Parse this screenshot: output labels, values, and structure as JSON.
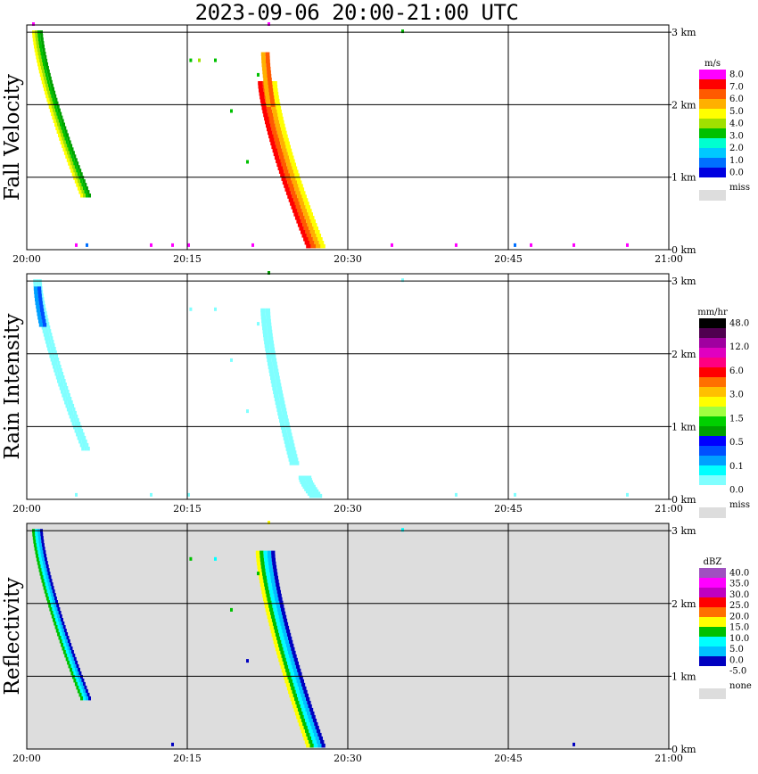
{
  "title": "2023-09-06   20:00-21:00 UTC",
  "chart_data": [
    {
      "type": "heatmap",
      "ylabel": "Fall Velocity",
      "x_ticks": [
        "20:00",
        "20:15",
        "20:30",
        "20:45",
        "21:00"
      ],
      "y_ticks": [
        "0 km",
        "1 km",
        "2 km",
        "3 km"
      ],
      "xlim": [
        "20:00",
        "21:00"
      ],
      "ylim_km": [
        0,
        3.1
      ],
      "grid": true,
      "background": "#ffffff",
      "colorbar": {
        "unit": "m/s",
        "labels": [
          "8.0",
          "7.0",
          "6.0",
          "5.0",
          "4.0",
          "3.0",
          "2.0",
          "1.0",
          "0.0"
        ],
        "colors": [
          "#ff00ff",
          "#ff0000",
          "#ff5a00",
          "#ffb000",
          "#ffff00",
          "#a0e000",
          "#00c000",
          "#00ffd0",
          "#00c8ff",
          "#0070ff",
          "#0000e0"
        ],
        "miss_label": "miss",
        "miss_color": "#dddddd"
      },
      "streaks": [
        {
          "start": [
            "20:01",
            3.0
          ],
          "end": [
            "20:05.5",
            0.75
          ],
          "width_min": 1.0,
          "colors": [
            "#ffff00",
            "#a0e000",
            "#00c000",
            "#00a000"
          ]
        },
        {
          "start": [
            "20:22.5",
            2.3
          ],
          "end": [
            "20:27",
            0.05
          ],
          "width_min": 1.8,
          "colors": [
            "#ff0000",
            "#ff5a00",
            "#ffb000",
            "#ffff00"
          ]
        },
        {
          "start": [
            "20:22.3",
            2.7
          ],
          "end": [
            "20:22.8",
            2.0
          ],
          "width_min": 0.8,
          "colors": [
            "#ffb000",
            "#ff5a00"
          ]
        }
      ],
      "specks": [
        {
          "t": "20:00.5",
          "h": 3.1,
          "c": "#ff00ff"
        },
        {
          "t": "20:15.2",
          "h": 2.6,
          "c": "#00c000"
        },
        {
          "t": "20:16",
          "h": 2.6,
          "c": "#a0e000"
        },
        {
          "t": "20:17.5",
          "h": 2.6,
          "c": "#00c000"
        },
        {
          "t": "20:21.5",
          "h": 2.4,
          "c": "#00c000"
        },
        {
          "t": "20:22.5",
          "h": 3.1,
          "c": "#ff00ff"
        },
        {
          "t": "20:19",
          "h": 1.9,
          "c": "#00c000"
        },
        {
          "t": "20:20.5",
          "h": 1.2,
          "c": "#00c000"
        },
        {
          "t": "20:35",
          "h": 3.0,
          "c": "#00c000"
        },
        {
          "t": "20:04.5",
          "h": 0.05,
          "c": "#ff00ff"
        },
        {
          "t": "20:05.5",
          "h": 0.05,
          "c": "#0070ff"
        },
        {
          "t": "20:11.5",
          "h": 0.05,
          "c": "#ff00ff"
        },
        {
          "t": "20:13.5",
          "h": 0.05,
          "c": "#ff00ff"
        },
        {
          "t": "20:15",
          "h": 0.05,
          "c": "#ff00ff"
        },
        {
          "t": "20:21",
          "h": 0.05,
          "c": "#ff00ff"
        },
        {
          "t": "20:34",
          "h": 0.05,
          "c": "#ff00ff"
        },
        {
          "t": "20:40",
          "h": 0.05,
          "c": "#ff00ff"
        },
        {
          "t": "20:45.5",
          "h": 0.05,
          "c": "#0070ff"
        },
        {
          "t": "20:47",
          "h": 0.05,
          "c": "#ff00ff"
        },
        {
          "t": "20:51",
          "h": 0.05,
          "c": "#ff00ff"
        },
        {
          "t": "20:56",
          "h": 0.05,
          "c": "#ff00ff"
        }
      ]
    },
    {
      "type": "heatmap",
      "ylabel": "Rain Intensity",
      "x_ticks": [
        "20:00",
        "20:15",
        "20:30",
        "20:45",
        "21:00"
      ],
      "y_ticks": [
        "0 km",
        "1 km",
        "2 km",
        "3 km"
      ],
      "xlim": [
        "20:00",
        "21:00"
      ],
      "ylim_km": [
        0,
        3.1
      ],
      "grid": true,
      "background": "#ffffff",
      "colorbar": {
        "unit": "mm/hr",
        "labels": [
          "48.0",
          "12.0",
          "6.0",
          "3.0",
          "1.5",
          "0.5",
          "0.1",
          "0.0"
        ],
        "colors": [
          "#000000",
          "#500050",
          "#a000a0",
          "#e000c0",
          "#ff0080",
          "#ff0000",
          "#ff7000",
          "#ffc000",
          "#ffff00",
          "#a0ff40",
          "#00d000",
          "#00a000",
          "#0000ff",
          "#0050ff",
          "#00a0ff",
          "#00ffff",
          "#80ffff",
          "#ffffff"
        ],
        "miss_label": "miss",
        "miss_color": "#dddddd"
      },
      "streaks": [
        {
          "start": [
            "20:01",
            3.0
          ],
          "end": [
            "20:05.5",
            0.7
          ],
          "width_min": 0.8,
          "colors": [
            "#80ffff",
            "#80ffff",
            "#80ffff"
          ]
        },
        {
          "start": [
            "20:22.3",
            2.6
          ],
          "end": [
            "20:25",
            0.5
          ],
          "width_min": 0.9,
          "colors": [
            "#80ffff",
            "#80ffff"
          ]
        },
        {
          "start": [
            "20:01",
            2.9
          ],
          "end": [
            "20:01.5",
            2.4
          ],
          "width_min": 0.7,
          "colors": [
            "#00a0ff",
            "#0050ff"
          ]
        },
        {
          "start": [
            "20:26",
            0.3
          ],
          "end": [
            "20:27",
            0.05
          ],
          "width_min": 1.2,
          "colors": [
            "#80ffff",
            "#80ffff"
          ]
        }
      ],
      "specks": [
        {
          "t": "20:22.5",
          "h": 3.1,
          "c": "#00a000"
        },
        {
          "t": "20:15.2",
          "h": 2.6,
          "c": "#80ffff"
        },
        {
          "t": "20:17.5",
          "h": 2.6,
          "c": "#80ffff"
        },
        {
          "t": "20:21.5",
          "h": 2.4,
          "c": "#80ffff"
        },
        {
          "t": "20:19",
          "h": 1.9,
          "c": "#80ffff"
        },
        {
          "t": "20:20.5",
          "h": 1.2,
          "c": "#80ffff"
        },
        {
          "t": "20:35",
          "h": 3.0,
          "c": "#80ffff"
        },
        {
          "t": "20:04.5",
          "h": 0.05,
          "c": "#80ffff"
        },
        {
          "t": "20:11.5",
          "h": 0.05,
          "c": "#80ffff"
        },
        {
          "t": "20:15",
          "h": 0.05,
          "c": "#80ffff"
        },
        {
          "t": "20:40",
          "h": 0.05,
          "c": "#80ffff"
        },
        {
          "t": "20:45.5",
          "h": 0.05,
          "c": "#80ffff"
        },
        {
          "t": "20:56",
          "h": 0.05,
          "c": "#80ffff"
        }
      ]
    },
    {
      "type": "heatmap",
      "ylabel": "Reflectivity",
      "x_ticks": [
        "20:00",
        "20:15",
        "20:30",
        "20:45",
        "21:00"
      ],
      "y_ticks": [
        "0 km",
        "1 km",
        "2 km",
        "3 km"
      ],
      "xlim": [
        "20:00",
        "21:00"
      ],
      "ylim_km": [
        0,
        3.1
      ],
      "grid": true,
      "background": "#dddddd",
      "colorbar": {
        "unit": "dBZ",
        "labels": [
          "40.0",
          "35.0",
          "30.0",
          "25.0",
          "20.0",
          "15.0",
          "10.0",
          "5.0",
          "0.0",
          "-5.0"
        ],
        "colors": [
          "#a050c0",
          "#ff00ff",
          "#c000c0",
          "#ff0000",
          "#ff7000",
          "#ffff00",
          "#00c000",
          "#00ffff",
          "#00c0ff",
          "#0000c0",
          "#ffffff"
        ],
        "miss_label": "none",
        "miss_color": "#dddddd"
      },
      "streaks": [
        {
          "start": [
            "20:01",
            3.0
          ],
          "end": [
            "20:05.5",
            0.7
          ],
          "width_min": 1.0,
          "colors": [
            "#00c000",
            "#00ffff",
            "#00c0ff",
            "#0000c0"
          ]
        },
        {
          "start": [
            "20:22.3",
            2.7
          ],
          "end": [
            "20:27",
            0.05
          ],
          "width_min": 1.8,
          "colors": [
            "#ffff00",
            "#00c000",
            "#00ffff",
            "#00c0ff",
            "#0000c0"
          ]
        }
      ],
      "specks": [
        {
          "t": "20:22.5",
          "h": 3.1,
          "c": "#ffff00"
        },
        {
          "t": "20:15.2",
          "h": 2.6,
          "c": "#00c000"
        },
        {
          "t": "20:17.5",
          "h": 2.6,
          "c": "#00ffff"
        },
        {
          "t": "20:21.5",
          "h": 2.4,
          "c": "#00c000"
        },
        {
          "t": "20:19",
          "h": 1.9,
          "c": "#00c000"
        },
        {
          "t": "20:20.5",
          "h": 1.2,
          "c": "#0000c0"
        },
        {
          "t": "20:35",
          "h": 3.0,
          "c": "#00ffff"
        },
        {
          "t": "20:13.5",
          "h": 0.05,
          "c": "#0000c0"
        },
        {
          "t": "20:51",
          "h": 0.05,
          "c": "#0000c0"
        }
      ]
    }
  ]
}
